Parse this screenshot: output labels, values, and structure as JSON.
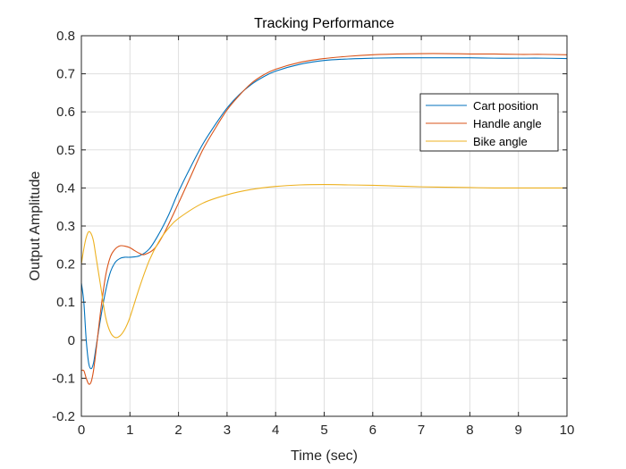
{
  "chart_data": {
    "type": "line",
    "title": "Tracking Performance",
    "xlabel": "Time (sec)",
    "ylabel": "Output Amplitude",
    "xlim": [
      0,
      10
    ],
    "ylim": [
      -0.2,
      0.8
    ],
    "xticks": [
      0,
      1,
      2,
      3,
      4,
      5,
      6,
      7,
      8,
      9,
      10
    ],
    "yticks": [
      -0.2,
      -0.1,
      0,
      0.1,
      0.2,
      0.3,
      0.4,
      0.5,
      0.6,
      0.7,
      0.8
    ],
    "xtick_labels": [
      "0",
      "1",
      "2",
      "3",
      "4",
      "5",
      "6",
      "7",
      "8",
      "9",
      "10"
    ],
    "ytick_labels": [
      "-0.2",
      "-0.1",
      "0",
      "0.1",
      "0.2",
      "0.3",
      "0.4",
      "0.5",
      "0.6",
      "0.7",
      "0.8"
    ],
    "grid": true,
    "legend_position": "top-right",
    "series": [
      {
        "name": "Cart position",
        "color": "#0072bd",
        "x": [
          0,
          0.05,
          0.1,
          0.15,
          0.2,
          0.25,
          0.3,
          0.4,
          0.5,
          0.6,
          0.7,
          0.8,
          0.9,
          1.0,
          1.2,
          1.4,
          1.6,
          1.8,
          2.0,
          2.25,
          2.5,
          2.75,
          3.0,
          3.25,
          3.5,
          3.75,
          4.0,
          4.5,
          5.0,
          5.5,
          6.0,
          6.5,
          7.0,
          7.5,
          8.0,
          8.5,
          9.0,
          9.5,
          10.0
        ],
        "y": [
          0.15,
          0.1,
          0.0,
          -0.06,
          -0.075,
          -0.06,
          -0.02,
          0.06,
          0.13,
          0.18,
          0.205,
          0.215,
          0.218,
          0.218,
          0.222,
          0.24,
          0.28,
          0.33,
          0.39,
          0.455,
          0.515,
          0.565,
          0.61,
          0.645,
          0.672,
          0.692,
          0.707,
          0.725,
          0.735,
          0.739,
          0.741,
          0.742,
          0.742,
          0.742,
          0.742,
          0.741,
          0.741,
          0.741,
          0.74
        ]
      },
      {
        "name": "Handle angle",
        "color": "#d95319",
        "x": [
          0,
          0.05,
          0.1,
          0.15,
          0.2,
          0.25,
          0.3,
          0.4,
          0.5,
          0.6,
          0.7,
          0.8,
          0.9,
          1.0,
          1.1,
          1.2,
          1.3,
          1.5,
          1.7,
          2.0,
          2.25,
          2.5,
          2.75,
          3.0,
          3.25,
          3.5,
          3.75,
          4.0,
          4.5,
          5.0,
          5.5,
          6.0,
          6.5,
          7.0,
          7.5,
          8.0,
          8.5,
          9.0,
          9.5,
          10.0
        ],
        "y": [
          -0.08,
          -0.08,
          -0.1,
          -0.115,
          -0.11,
          -0.08,
          -0.03,
          0.08,
          0.17,
          0.22,
          0.24,
          0.248,
          0.247,
          0.243,
          0.235,
          0.228,
          0.225,
          0.24,
          0.28,
          0.36,
          0.43,
          0.5,
          0.555,
          0.605,
          0.643,
          0.675,
          0.697,
          0.712,
          0.73,
          0.74,
          0.746,
          0.75,
          0.752,
          0.753,
          0.753,
          0.752,
          0.752,
          0.751,
          0.751,
          0.75
        ]
      },
      {
        "name": "Bike angle",
        "color": "#edb120",
        "x": [
          0,
          0.05,
          0.1,
          0.15,
          0.2,
          0.25,
          0.3,
          0.4,
          0.5,
          0.6,
          0.7,
          0.8,
          0.9,
          1.0,
          1.2,
          1.4,
          1.6,
          1.8,
          2.0,
          2.5,
          3.0,
          3.5,
          4.0,
          4.5,
          5.0,
          5.5,
          6.0,
          6.5,
          7.0,
          7.5,
          8.0,
          8.5,
          9.0,
          9.5,
          10.0
        ],
        "y": [
          0.2,
          0.24,
          0.27,
          0.285,
          0.28,
          0.26,
          0.22,
          0.14,
          0.06,
          0.02,
          0.007,
          0.012,
          0.03,
          0.06,
          0.14,
          0.21,
          0.26,
          0.295,
          0.32,
          0.36,
          0.382,
          0.396,
          0.404,
          0.408,
          0.409,
          0.408,
          0.407,
          0.405,
          0.403,
          0.402,
          0.401,
          0.4,
          0.4,
          0.4,
          0.4
        ]
      }
    ]
  }
}
